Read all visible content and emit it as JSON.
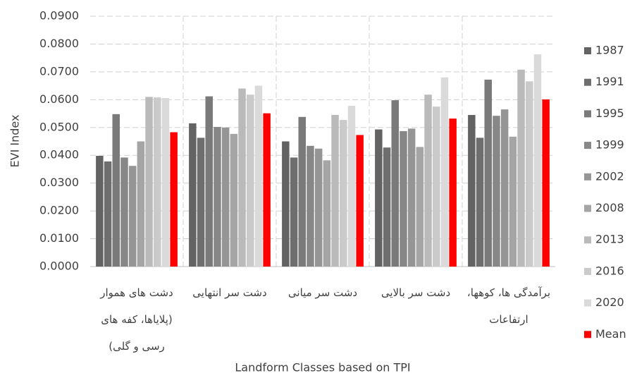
{
  "chart_data": {
    "type": "bar",
    "y_label": "EVI Index",
    "x_label": "Landform Classes based on TPI",
    "categories": [
      "دشت های هموار (پلایاها، کفه های رسی و گلی)",
      "دشت سر انتهایی",
      "دشت سر میانی",
      "دشت سر بالایی",
      "برآمدگی ها، کوهها، ارتفاعات"
    ],
    "series": [
      {
        "name": "1987",
        "color": "#636363",
        "values": [
          0.0398,
          0.0515,
          0.045,
          0.0493,
          0.0545
        ]
      },
      {
        "name": "1991",
        "color": "#6e6e6e",
        "values": [
          0.0378,
          0.0463,
          0.0392,
          0.0428,
          0.0463
        ]
      },
      {
        "name": "1995",
        "color": "#7a7a7a",
        "values": [
          0.0548,
          0.0612,
          0.0538,
          0.0598,
          0.0672
        ]
      },
      {
        "name": "1999",
        "color": "#878787",
        "values": [
          0.0392,
          0.0502,
          0.0434,
          0.0487,
          0.0542
        ]
      },
      {
        "name": "2002",
        "color": "#959595",
        "values": [
          0.0362,
          0.05,
          0.0424,
          0.0496,
          0.0565
        ]
      },
      {
        "name": "2008",
        "color": "#a5a5a5",
        "values": [
          0.045,
          0.0477,
          0.0382,
          0.043,
          0.0467
        ]
      },
      {
        "name": "2013",
        "color": "#bababa",
        "values": [
          0.061,
          0.064,
          0.0545,
          0.0618,
          0.0708
        ]
      },
      {
        "name": "2016",
        "color": "#cacaca",
        "values": [
          0.0608,
          0.0618,
          0.0527,
          0.0575,
          0.0666
        ]
      },
      {
        "name": "2020",
        "color": "#dadada",
        "values": [
          0.0606,
          0.065,
          0.0578,
          0.068,
          0.0763
        ]
      },
      {
        "name": "Mean",
        "color": "#ff0000",
        "values": [
          0.0483,
          0.0551,
          0.0473,
          0.0532,
          0.0601
        ]
      }
    ],
    "ylim": [
      0,
      0.09
    ],
    "yticks": [
      {
        "value": 0,
        "label": "0.0000"
      },
      {
        "value": 0.01,
        "label": "0.0100"
      },
      {
        "value": 0.02,
        "label": "0.0200"
      },
      {
        "value": 0.03,
        "label": "0.0300"
      },
      {
        "value": 0.04,
        "label": "0.0400"
      },
      {
        "value": 0.05,
        "label": "0.0500"
      },
      {
        "value": 0.06,
        "label": "0.0600"
      },
      {
        "value": 0.07,
        "label": "0.0700"
      },
      {
        "value": 0.08,
        "label": "0.0800"
      },
      {
        "value": 0.09,
        "label": "0.0900"
      }
    ],
    "grid": true,
    "legend": "right"
  }
}
